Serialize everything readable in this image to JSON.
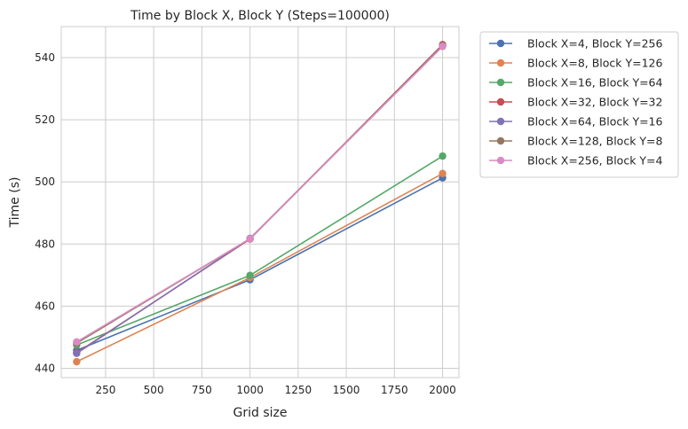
{
  "chart_data": {
    "type": "line",
    "title": "Time by Block X, Block Y (Steps=100000)",
    "xlabel": "Grid size",
    "ylabel": "Time (s)",
    "xlim": [
      20,
      2085
    ],
    "ylim": [
      437,
      550
    ],
    "xticks": [
      250,
      500,
      750,
      1000,
      1250,
      1500,
      1750,
      2000
    ],
    "yticks": [
      440,
      460,
      480,
      500,
      520,
      540
    ],
    "grid": true,
    "legend_position": "outside-top-right",
    "x": [
      100,
      1000,
      2000
    ],
    "series": [
      {
        "name": "Block X=4, Block Y=256",
        "color": "#4c72b0",
        "values": [
          445.8,
          468.5,
          501.3
        ]
      },
      {
        "name": "Block X=8, Block Y=126",
        "color": "#dd8452",
        "values": [
          442.1,
          469.2,
          502.7
        ]
      },
      {
        "name": "Block X=16, Block Y=64",
        "color": "#55a868",
        "values": [
          447.5,
          469.9,
          508.3
        ]
      },
      {
        "name": "Block X=32, Block Y=32",
        "color": "#c44e52",
        "values": [
          445.0,
          481.6,
          544.2
        ]
      },
      {
        "name": "Block X=64, Block Y=16",
        "color": "#8172b3",
        "values": [
          444.8,
          481.8,
          543.8
        ]
      },
      {
        "name": "Block X=128, Block Y=8",
        "color": "#937860",
        "values": [
          448.1,
          481.7,
          543.9
        ]
      },
      {
        "name": "Block X=256, Block Y=4",
        "color": "#da8bc3",
        "values": [
          448.5,
          481.7,
          543.6
        ]
      }
    ]
  }
}
